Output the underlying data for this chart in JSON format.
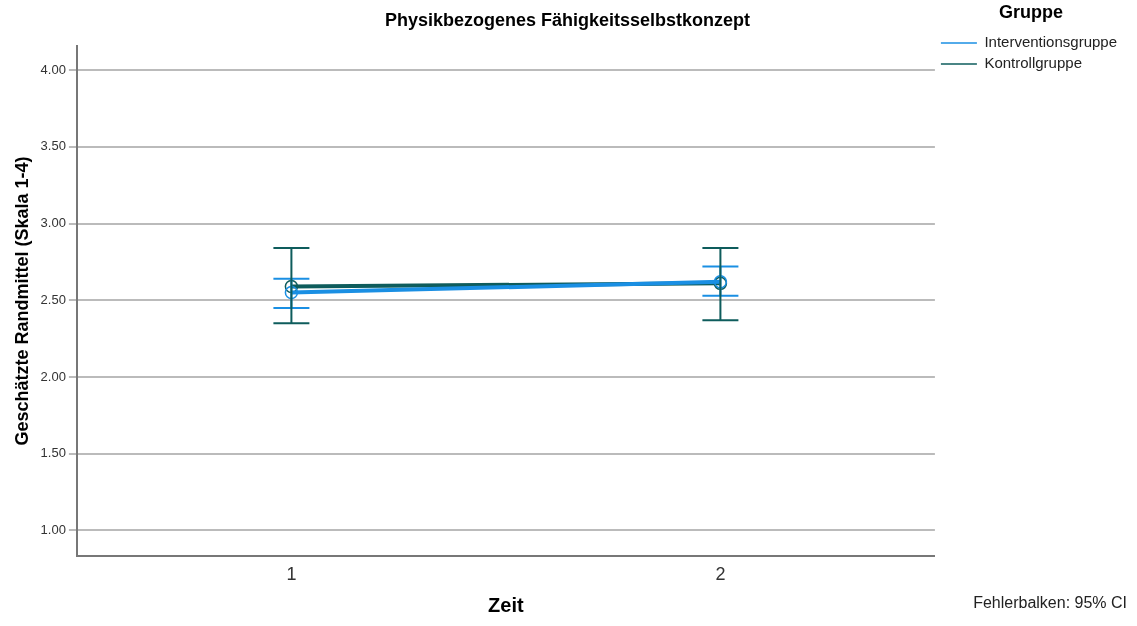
{
  "chart_data": {
    "type": "line",
    "title": "Physikbezogenes Fähigkeitsselbstkonzept",
    "xlabel": "Zeit",
    "ylabel": "Geschätzte Randmittel (Skala 1-4)",
    "legend_title": "Gruppe",
    "categories": [
      "1",
      "2"
    ],
    "series": [
      {
        "name": "Interventionsgruppe",
        "color": "#1a8fe3",
        "values": [
          2.55,
          2.62
        ],
        "errors": [
          [
            2.45,
            2.64
          ],
          [
            2.53,
            2.72
          ]
        ]
      },
      {
        "name": "Kontrollgruppe",
        "color": "#0e5c5c",
        "values": [
          2.59,
          2.61
        ],
        "errors": [
          [
            2.35,
            2.84
          ],
          [
            2.37,
            2.84
          ]
        ]
      }
    ],
    "ylim": [
      0.83,
      4.16
    ],
    "yticks": [
      {
        "value": 1,
        "label": "1.00"
      },
      {
        "value": 1.5,
        "label": "1.50"
      },
      {
        "value": 2,
        "label": "2.00"
      },
      {
        "value": 2.5,
        "label": "2.50"
      },
      {
        "value": 3,
        "label": "3.00"
      },
      {
        "value": 3.5,
        "label": "3.50"
      },
      {
        "value": 4,
        "label": "4.00"
      }
    ],
    "grid": "y",
    "legend": "top right",
    "marker": "circle",
    "line_style": "solid",
    "annotations": [
      "Fehlerbalken: 95% CI"
    ]
  }
}
